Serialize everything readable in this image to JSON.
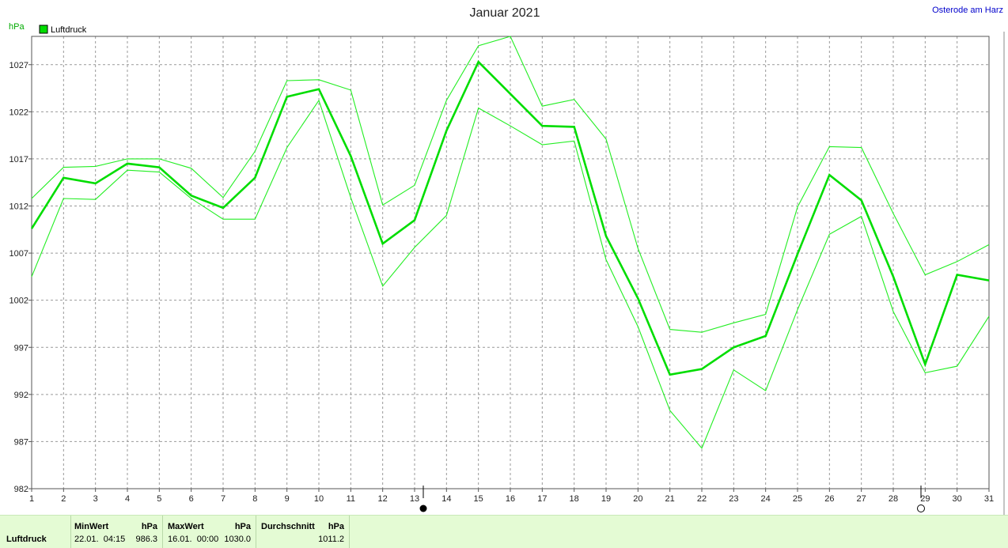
{
  "chart_data": {
    "type": "line",
    "title": "Januar 2021",
    "location": "Osterode am Harz",
    "ylabel": "hPa",
    "ylim": [
      982,
      1030
    ],
    "yticks": [
      982,
      987,
      992,
      997,
      1002,
      1007,
      1012,
      1017,
      1022,
      1027
    ],
    "x": [
      1,
      2,
      3,
      4,
      5,
      6,
      7,
      8,
      9,
      10,
      11,
      12,
      13,
      14,
      15,
      16,
      17,
      18,
      19,
      20,
      21,
      22,
      23,
      24,
      25,
      26,
      27,
      28,
      29,
      30,
      31
    ],
    "legend": "top-left",
    "grid": true,
    "series": [
      {
        "name": "Luftdruck",
        "role": "mean",
        "color": "#00dd00",
        "values": [
          1009.6,
          1015.0,
          1014.4,
          1016.5,
          1016.1,
          1013.1,
          1011.8,
          1015.0,
          1023.6,
          1024.4,
          1017.3,
          1008.0,
          1010.5,
          1020.0,
          1027.3,
          1023.9,
          1020.5,
          1020.4,
          1008.8,
          1002.2,
          994.1,
          994.7,
          997.0,
          998.2,
          1006.9,
          1015.3,
          1012.6,
          1004.5,
          995.2,
          1004.7,
          1004.1
        ]
      },
      {
        "role": "max",
        "color": "#22ee22",
        "values": [
          1012.8,
          1016.1,
          1016.2,
          1017.0,
          1017.0,
          1016.0,
          1012.9,
          1017.8,
          1025.3,
          1025.4,
          1024.3,
          1012.1,
          1014.2,
          1023.2,
          1029.0,
          1030.0,
          1022.6,
          1023.3,
          1019.1,
          1007.5,
          998.9,
          998.6,
          999.6,
          1000.5,
          1011.9,
          1018.3,
          1018.2,
          1011.2,
          1004.7,
          1006.1,
          1007.9
        ]
      },
      {
        "role": "min",
        "color": "#22ee22",
        "values": [
          1004.5,
          1012.8,
          1012.7,
          1015.8,
          1015.6,
          1012.8,
          1010.6,
          1010.6,
          1018.2,
          1023.2,
          1012.9,
          1003.5,
          1007.6,
          1011.0,
          1022.4,
          1020.5,
          1018.5,
          1018.9,
          1006.3,
          999.2,
          990.3,
          986.3,
          994.6,
          992.4,
          1001.0,
          1009.0,
          1010.9,
          1000.8,
          994.3,
          995.0,
          1000.3
        ]
      }
    ]
  },
  "footer": {
    "series_label": "Luftdruck",
    "min": {
      "header": "MinWert",
      "unit": "hPa",
      "datetime": "22.01.  04:15",
      "value": "986.3"
    },
    "max": {
      "header": "MaxWert",
      "unit": "hPa",
      "datetime": "16.01.  00:00",
      "value": "1030.0"
    },
    "avg": {
      "header": "Durchschnitt",
      "unit": "hPa",
      "value": "1011.2"
    }
  },
  "colors": {
    "footer_bg": "#e4fbd4",
    "grid": "#999999",
    "mean": "#00dd00",
    "location": "#0000cc"
  }
}
